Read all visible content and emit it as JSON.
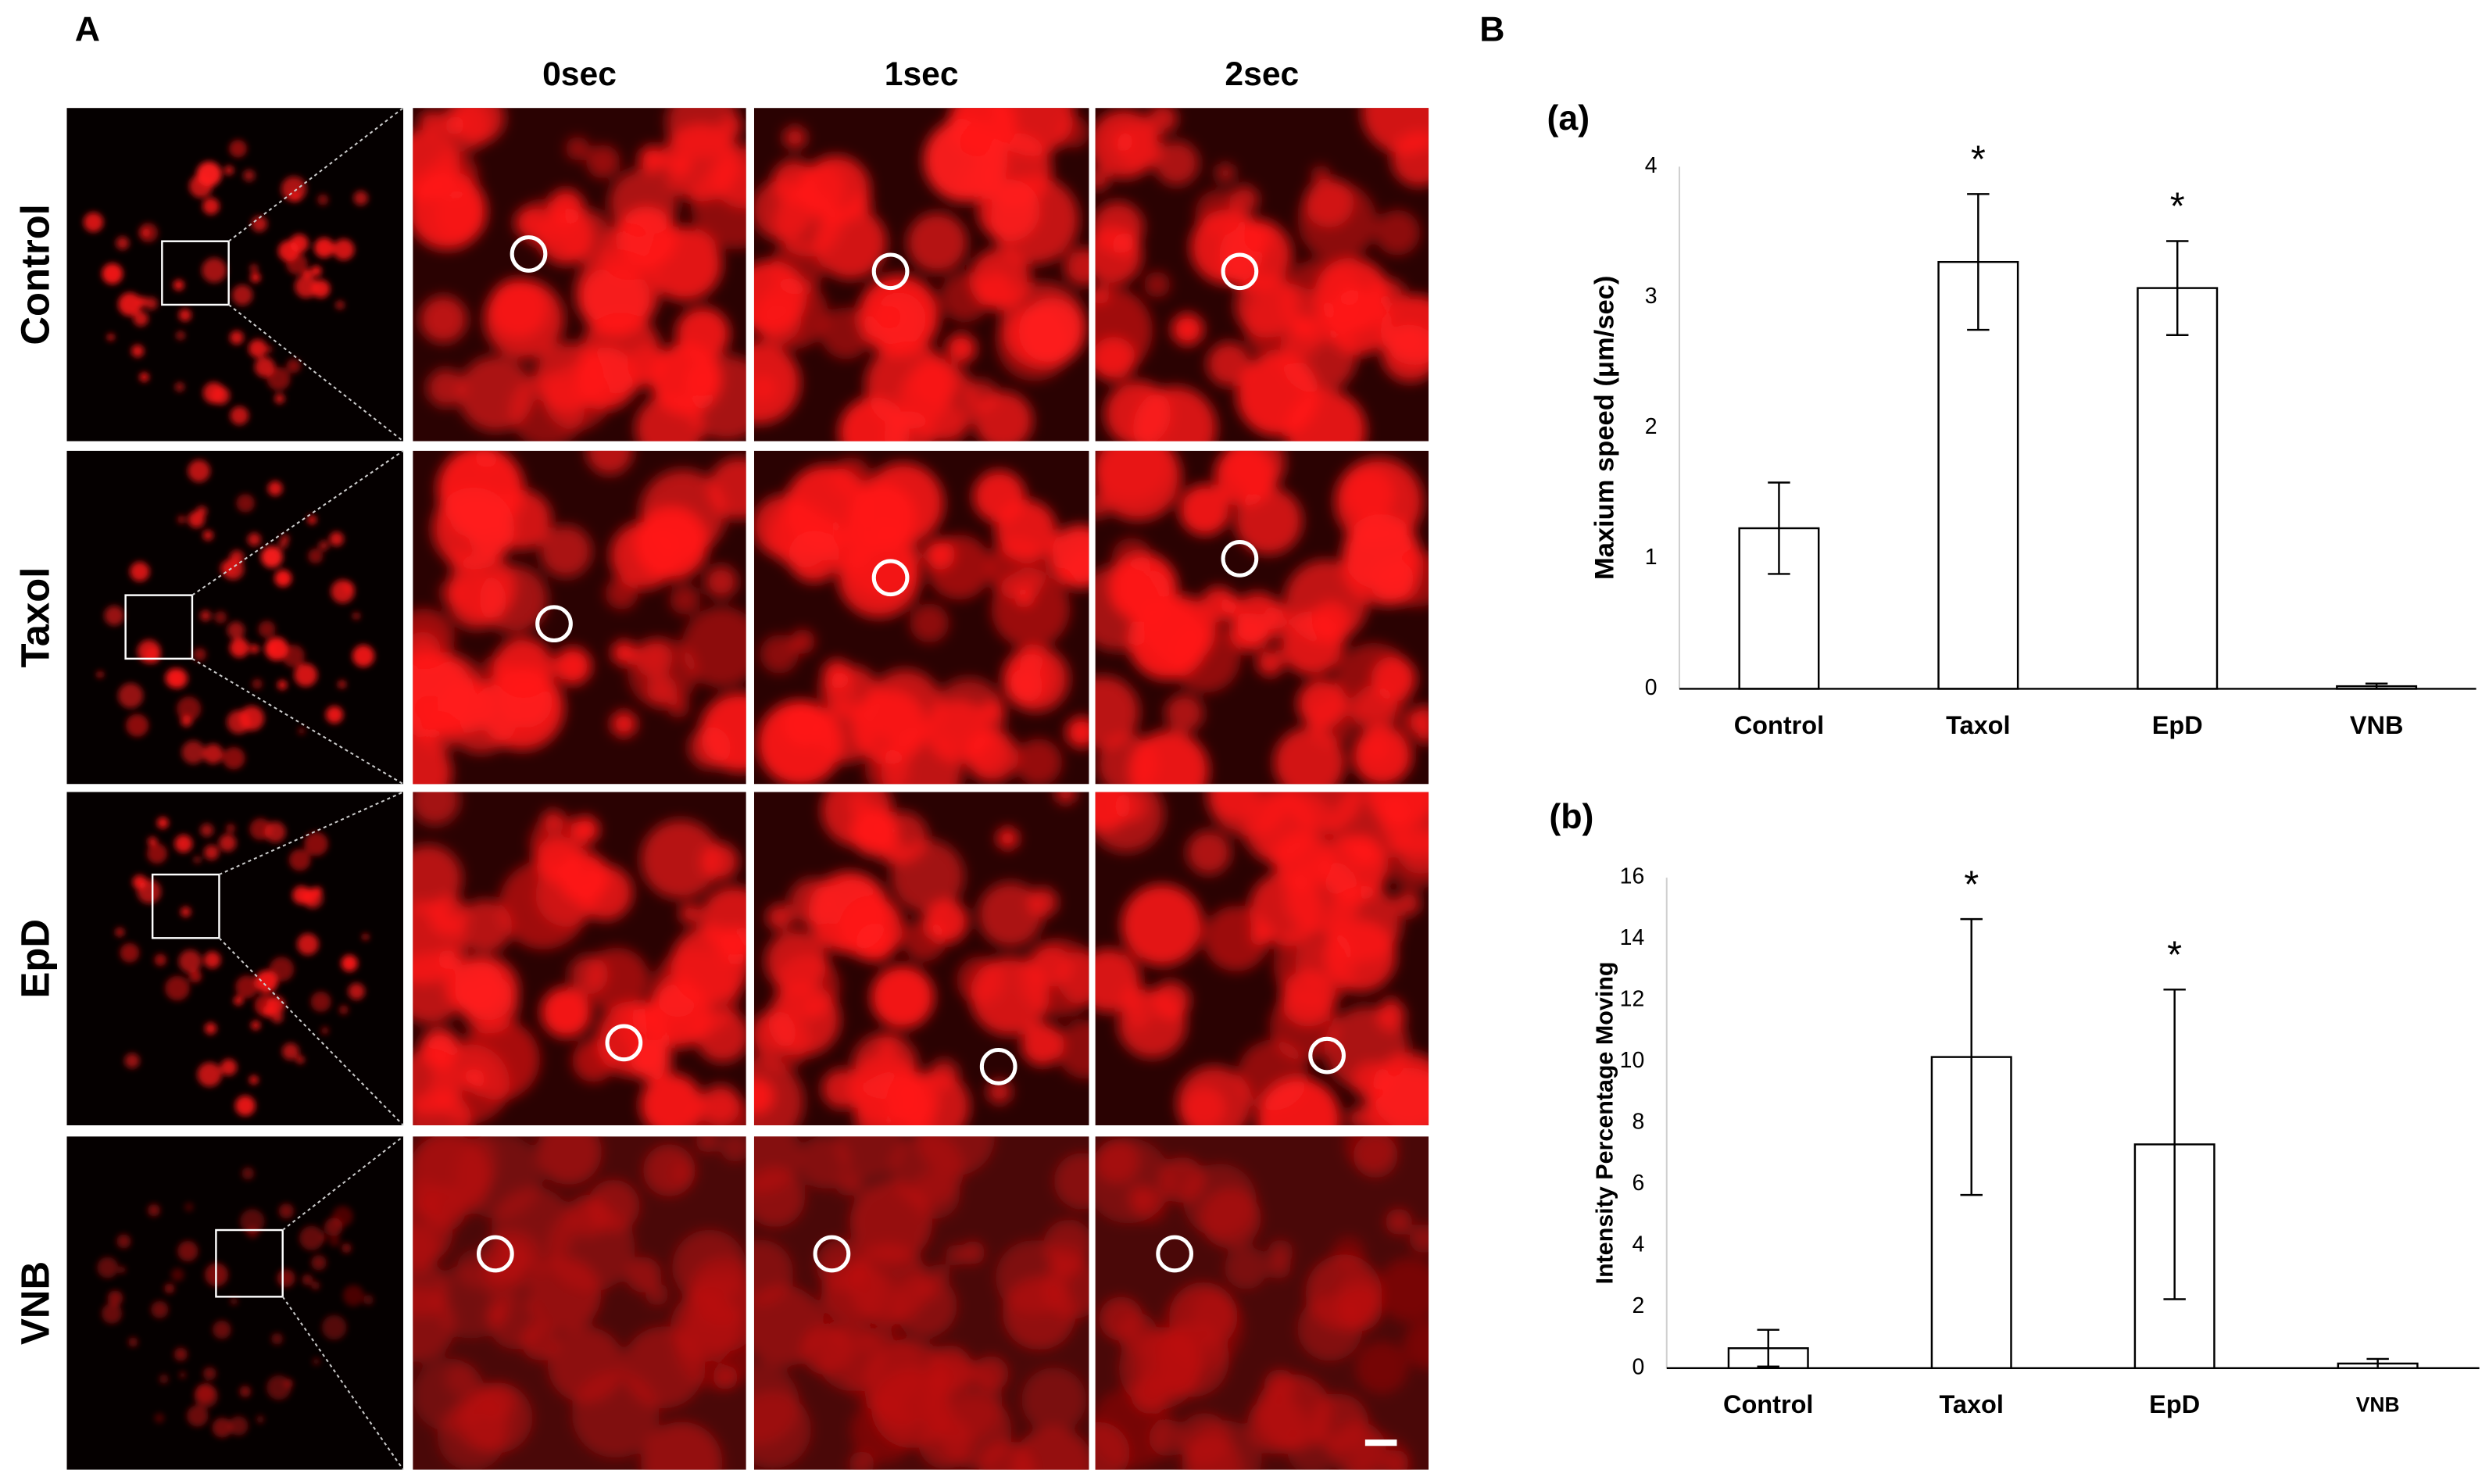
{
  "figure": {
    "panel_labels": [
      "A",
      "B"
    ],
    "columns": [
      "0sec",
      "1sec",
      "2sec"
    ],
    "rows": [
      "Control",
      "Taxol",
      "EpD",
      "VNB"
    ]
  },
  "chart_data": [
    {
      "type": "bar",
      "title": "(a)",
      "y_label": "Maxium speed (μm/sec)",
      "categories": [
        "Control",
        "Taxol",
        "EpD",
        "VNB"
      ],
      "values": [
        1.23,
        3.27,
        3.07,
        0.02
      ],
      "errors": [
        0.35,
        0.52,
        0.36,
        0.02
      ],
      "annotations": [
        {
          "category": "Taxol",
          "text": "*"
        },
        {
          "category": "EpD",
          "text": "*"
        }
      ],
      "color": "#ffffff",
      "ylim": [
        0,
        4
      ],
      "yticks": [
        0,
        1,
        2,
        3,
        4
      ],
      "grid": false
    },
    {
      "type": "bar",
      "title": "(b)",
      "y_label": "Intensity Percentage Moving",
      "categories": [
        "Control",
        "Taxol",
        "EpD",
        "VNB"
      ],
      "values": [
        0.65,
        10.15,
        7.3,
        0.15
      ],
      "errors": [
        0.6,
        4.5,
        5.05,
        0.15
      ],
      "annotations": [
        {
          "category": "Taxol",
          "text": "*"
        },
        {
          "category": "EpD",
          "text": "*"
        }
      ],
      "color": "#ffffff",
      "ylim": [
        0,
        16
      ],
      "yticks": [
        0,
        2,
        4,
        6,
        8,
        10,
        12,
        14,
        16
      ],
      "grid": false
    }
  ]
}
